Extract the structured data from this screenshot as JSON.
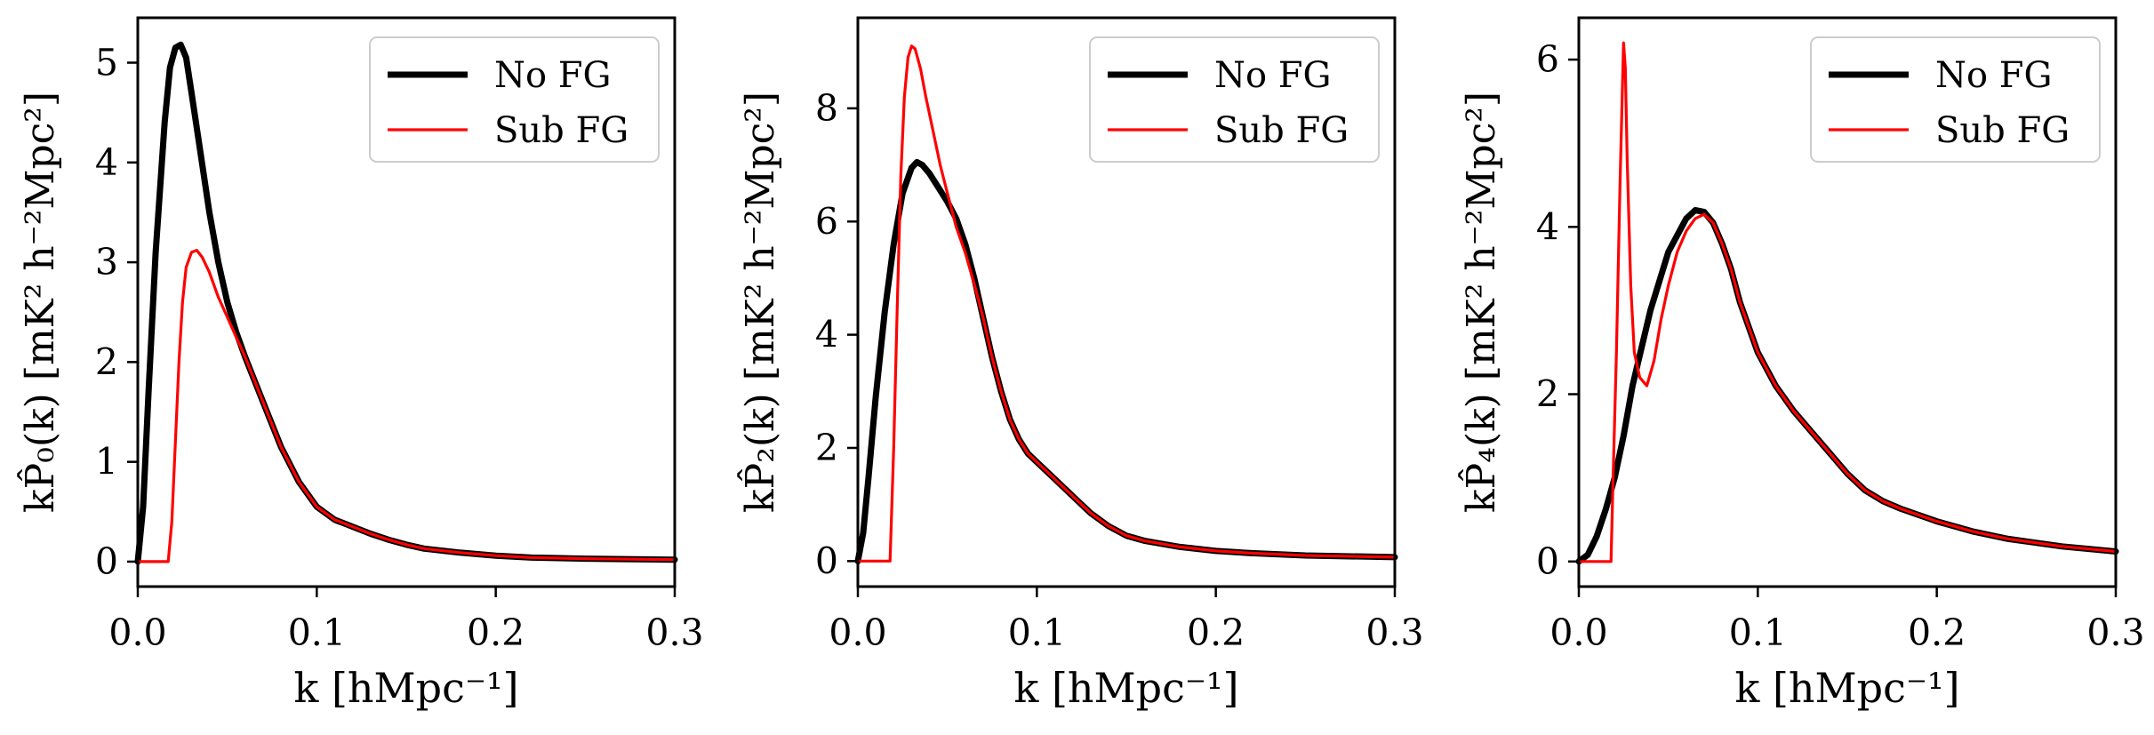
{
  "chart_data": [
    {
      "type": "line",
      "panel": "P0",
      "xlabel": "k [hMpc⁻¹]",
      "ylabel": "kP̂₀(k) [mK² h⁻²Mpc²]",
      "xlim": [
        0,
        0.3
      ],
      "ylim": [
        -0.25,
        5.45
      ],
      "xticks": [
        0.0,
        0.1,
        0.2,
        0.3
      ],
      "xtick_labels": [
        "0.0",
        "0.1",
        "0.2",
        "0.3"
      ],
      "yticks": [
        0,
        1,
        2,
        3,
        4,
        5
      ],
      "ytick_labels": [
        "0",
        "1",
        "2",
        "3",
        "4",
        "5"
      ],
      "legend_position": "top-right",
      "series": [
        {
          "name": "No FG",
          "color": "#000000",
          "x": [
            0.0,
            0.003,
            0.006,
            0.01,
            0.015,
            0.018,
            0.021,
            0.024,
            0.027,
            0.03,
            0.035,
            0.04,
            0.045,
            0.05,
            0.055,
            0.06,
            0.07,
            0.08,
            0.09,
            0.1,
            0.11,
            0.12,
            0.13,
            0.14,
            0.15,
            0.16,
            0.18,
            0.2,
            0.22,
            0.25,
            0.3
          ],
          "y": [
            0.0,
            0.55,
            1.7,
            3.1,
            4.4,
            4.95,
            5.15,
            5.18,
            5.05,
            4.7,
            4.1,
            3.5,
            3.0,
            2.6,
            2.3,
            2.05,
            1.6,
            1.15,
            0.8,
            0.55,
            0.42,
            0.35,
            0.28,
            0.22,
            0.17,
            0.13,
            0.09,
            0.06,
            0.04,
            0.03,
            0.02
          ]
        },
        {
          "name": "Sub FG",
          "color": "#ff0000",
          "x": [
            0.0,
            0.017,
            0.019,
            0.021,
            0.023,
            0.025,
            0.027,
            0.03,
            0.033,
            0.036,
            0.04,
            0.045,
            0.05,
            0.055,
            0.06,
            0.07,
            0.08,
            0.09,
            0.1,
            0.11,
            0.12,
            0.13,
            0.14,
            0.15,
            0.16,
            0.18,
            0.2,
            0.22,
            0.25,
            0.3
          ],
          "y": [
            0.0,
            0.0,
            0.4,
            1.2,
            2.0,
            2.6,
            2.95,
            3.1,
            3.12,
            3.05,
            2.9,
            2.65,
            2.45,
            2.25,
            2.05,
            1.6,
            1.15,
            0.8,
            0.55,
            0.42,
            0.35,
            0.28,
            0.22,
            0.17,
            0.13,
            0.09,
            0.06,
            0.04,
            0.03,
            0.02
          ]
        }
      ]
    },
    {
      "type": "line",
      "panel": "P2",
      "xlabel": "k [hMpc⁻¹]",
      "ylabel": "kP̂₂(k) [mK² h⁻²Mpc²]",
      "xlim": [
        0,
        0.3
      ],
      "ylim": [
        -0.45,
        9.6
      ],
      "xticks": [
        0.0,
        0.1,
        0.2,
        0.3
      ],
      "xtick_labels": [
        "0.0",
        "0.1",
        "0.2",
        "0.3"
      ],
      "yticks": [
        0,
        2,
        4,
        6,
        8
      ],
      "ytick_labels": [
        "0",
        "2",
        "4",
        "6",
        "8"
      ],
      "legend_position": "top-right",
      "series": [
        {
          "name": "No FG",
          "color": "#000000",
          "x": [
            0.0,
            0.003,
            0.006,
            0.01,
            0.015,
            0.02,
            0.025,
            0.03,
            0.033,
            0.036,
            0.04,
            0.045,
            0.05,
            0.055,
            0.06,
            0.065,
            0.07,
            0.075,
            0.08,
            0.085,
            0.09,
            0.095,
            0.1,
            0.11,
            0.12,
            0.13,
            0.14,
            0.15,
            0.16,
            0.18,
            0.2,
            0.22,
            0.25,
            0.3
          ],
          "y": [
            0.0,
            0.5,
            1.5,
            2.9,
            4.4,
            5.6,
            6.5,
            6.95,
            7.05,
            7.0,
            6.85,
            6.6,
            6.35,
            6.05,
            5.6,
            5.0,
            4.3,
            3.6,
            3.0,
            2.5,
            2.15,
            1.9,
            1.75,
            1.45,
            1.15,
            0.85,
            0.62,
            0.45,
            0.36,
            0.25,
            0.18,
            0.14,
            0.1,
            0.07
          ]
        },
        {
          "name": "Sub FG",
          "color": "#ff0000",
          "x": [
            0.0,
            0.018,
            0.02,
            0.022,
            0.024,
            0.026,
            0.028,
            0.03,
            0.032,
            0.035,
            0.038,
            0.042,
            0.046,
            0.05,
            0.055,
            0.06,
            0.065,
            0.07,
            0.075,
            0.08,
            0.085,
            0.09,
            0.095,
            0.1,
            0.11,
            0.12,
            0.13,
            0.14,
            0.15,
            0.16,
            0.18,
            0.2,
            0.22,
            0.25,
            0.3
          ],
          "y": [
            0.0,
            0.0,
            2.0,
            4.5,
            6.8,
            8.2,
            8.9,
            9.1,
            9.05,
            8.7,
            8.2,
            7.6,
            7.0,
            6.5,
            5.9,
            5.45,
            4.9,
            4.3,
            3.6,
            3.0,
            2.5,
            2.15,
            1.9,
            1.75,
            1.45,
            1.15,
            0.85,
            0.62,
            0.45,
            0.36,
            0.25,
            0.18,
            0.14,
            0.1,
            0.07
          ]
        }
      ]
    },
    {
      "type": "line",
      "panel": "P4",
      "xlabel": "k [hMpc⁻¹]",
      "ylabel": "kP̂₄(k) [mK² h⁻²Mpc²]",
      "xlim": [
        0,
        0.3
      ],
      "ylim": [
        -0.3,
        6.5
      ],
      "xticks": [
        0.0,
        0.1,
        0.2,
        0.3
      ],
      "xtick_labels": [
        "0.0",
        "0.1",
        "0.2",
        "0.3"
      ],
      "yticks": [
        0,
        2,
        4,
        6
      ],
      "ytick_labels": [
        "0",
        "2",
        "4",
        "6"
      ],
      "legend_position": "top-right",
      "series": [
        {
          "name": "No FG",
          "color": "#000000",
          "x": [
            0.0,
            0.005,
            0.01,
            0.015,
            0.02,
            0.025,
            0.03,
            0.04,
            0.05,
            0.06,
            0.065,
            0.07,
            0.075,
            0.08,
            0.085,
            0.09,
            0.1,
            0.11,
            0.12,
            0.13,
            0.14,
            0.15,
            0.16,
            0.17,
            0.18,
            0.2,
            0.22,
            0.24,
            0.27,
            0.3
          ],
          "y": [
            0.0,
            0.08,
            0.3,
            0.62,
            1.0,
            1.5,
            2.1,
            3.0,
            3.7,
            4.1,
            4.2,
            4.18,
            4.05,
            3.8,
            3.5,
            3.1,
            2.5,
            2.1,
            1.8,
            1.55,
            1.3,
            1.05,
            0.85,
            0.72,
            0.63,
            0.48,
            0.36,
            0.27,
            0.18,
            0.12
          ]
        },
        {
          "name": "Sub FG",
          "color": "#ff0000",
          "x": [
            0.0,
            0.018,
            0.019,
            0.021,
            0.023,
            0.025,
            0.026,
            0.027,
            0.029,
            0.031,
            0.034,
            0.038,
            0.042,
            0.046,
            0.05,
            0.055,
            0.06,
            0.065,
            0.07,
            0.075,
            0.08,
            0.085,
            0.09,
            0.1,
            0.11,
            0.12,
            0.13,
            0.14,
            0.15,
            0.16,
            0.17,
            0.18,
            0.2,
            0.22,
            0.24,
            0.27,
            0.3
          ],
          "y": [
            0.0,
            0.0,
            0.9,
            2.5,
            4.5,
            6.2,
            5.9,
            4.8,
            3.3,
            2.5,
            2.2,
            2.1,
            2.4,
            2.9,
            3.3,
            3.7,
            3.95,
            4.1,
            4.15,
            4.05,
            3.8,
            3.5,
            3.1,
            2.5,
            2.1,
            1.8,
            1.55,
            1.3,
            1.05,
            0.85,
            0.72,
            0.63,
            0.48,
            0.36,
            0.27,
            0.18,
            0.12
          ]
        }
      ]
    }
  ]
}
